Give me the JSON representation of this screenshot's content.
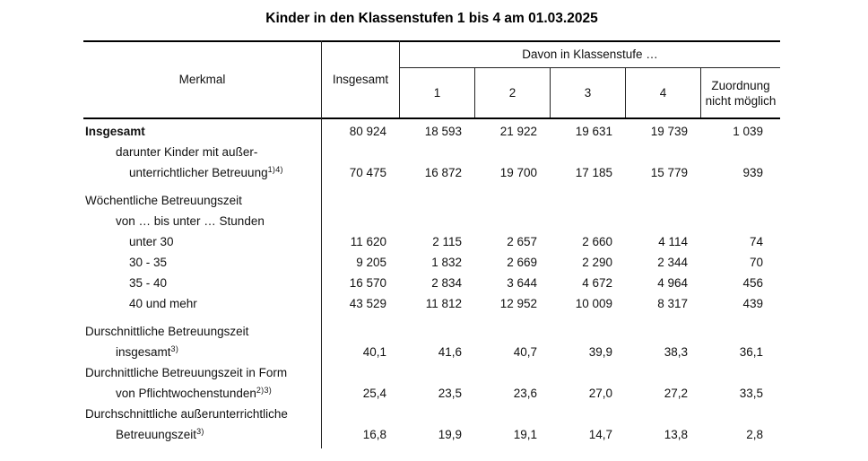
{
  "colors": {
    "text": "#111111",
    "rule": "#000000",
    "background": "#ffffff"
  },
  "title": "Kinder in den Klassenstufen 1 bis 4 am 01.03.2025",
  "table": {
    "header": {
      "merkmal": "Merkmal",
      "insgesamt": "Insgesamt",
      "davon_group": "Davon in Klassenstufe …",
      "subcolumns": [
        "1",
        "2",
        "3",
        "4",
        "Zuordnung nicht möglich"
      ]
    },
    "rows": [
      {
        "gap_before": false,
        "lines": [
          {
            "text": "Insgesamt",
            "indent": 0,
            "bold": true
          }
        ],
        "values": [
          "80 924",
          "18 593",
          "21 922",
          "19 631",
          "19 739",
          "1 039"
        ]
      },
      {
        "gap_before": false,
        "lines": [
          {
            "text": "darunter Kinder mit außer-",
            "indent": 1
          },
          {
            "text": "unterrichtlicher Betreuung",
            "indent": 2,
            "sup": "1)4)"
          }
        ],
        "values": [
          "70 475",
          "16 872",
          "19 700",
          "17 185",
          "15 779",
          "939"
        ]
      },
      {
        "gap_before": true,
        "lines": [
          {
            "text": "Wöchentliche Betreuungszeit",
            "indent": 0
          }
        ],
        "values": []
      },
      {
        "gap_before": false,
        "lines": [
          {
            "text": "von … bis unter … Stunden",
            "indent": 1
          }
        ],
        "values": []
      },
      {
        "gap_before": false,
        "lines": [
          {
            "text": "unter 30",
            "indent": 2
          }
        ],
        "values": [
          "11 620",
          "2 115",
          "2 657",
          "2 660",
          "4 114",
          "74"
        ]
      },
      {
        "gap_before": false,
        "lines": [
          {
            "text": "30 - 35",
            "indent": 2
          }
        ],
        "values": [
          "9 205",
          "1 832",
          "2 669",
          "2 290",
          "2 344",
          "70"
        ]
      },
      {
        "gap_before": false,
        "lines": [
          {
            "text": "35 - 40",
            "indent": 2
          }
        ],
        "values": [
          "16 570",
          "2 834",
          "3 644",
          "4 672",
          "4 964",
          "456"
        ]
      },
      {
        "gap_before": false,
        "lines": [
          {
            "text": "40 und mehr",
            "indent": 2
          }
        ],
        "values": [
          "43 529",
          "11 812",
          "12 952",
          "10 009",
          "8 317",
          "439"
        ]
      },
      {
        "gap_before": true,
        "lines": [
          {
            "text": "Durschnittliche Betreuungszeit",
            "indent": 0
          },
          {
            "text": "insgesamt",
            "indent": 1,
            "sup": "3)"
          }
        ],
        "values": [
          "40,1",
          "41,6",
          "40,7",
          "39,9",
          "38,3",
          "36,1"
        ]
      },
      {
        "gap_before": false,
        "lines": [
          {
            "text": "Durchnittliche Betreuungszeit in Form",
            "indent": 0
          },
          {
            "text": "von Pflichtwochenstunden",
            "indent": 1,
            "sup": "2)3)"
          }
        ],
        "values": [
          "25,4",
          "23,5",
          "23,6",
          "27,0",
          "27,2",
          "33,5"
        ]
      },
      {
        "gap_before": false,
        "lines": [
          {
            "text": "Durchschnittliche außerunterrichtliche",
            "indent": 0
          },
          {
            "text": "Betreuungszeit",
            "indent": 1,
            "sup": "3)"
          }
        ],
        "values": [
          "16,8",
          "19,9",
          "19,1",
          "14,7",
          "13,8",
          "2,8"
        ]
      }
    ]
  }
}
